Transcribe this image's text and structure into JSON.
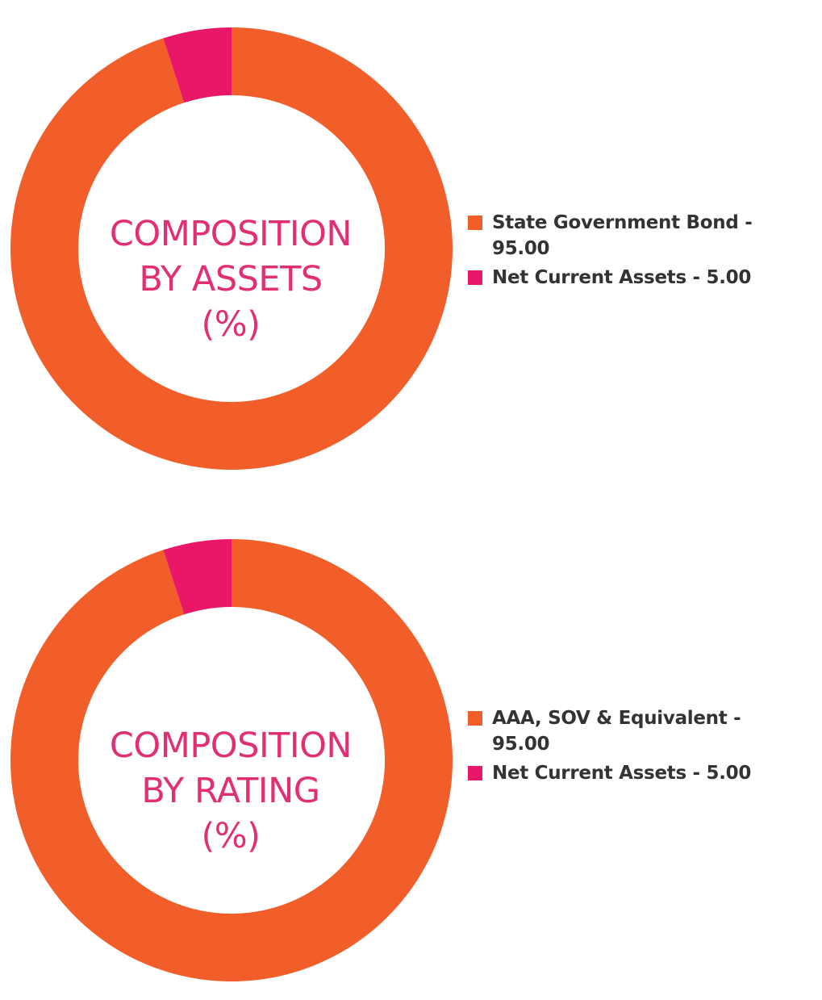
{
  "colors": {
    "primary": "#f15e2a",
    "secondary": "#ea1768",
    "title": "#e22f73",
    "legend_text": "#333333"
  },
  "chart_data": [
    {
      "type": "pie",
      "title_lines": [
        "COMPOSITION",
        "BY ASSETS",
        "(%)"
      ],
      "slices": [
        {
          "label": "State Government Bond - 95.00",
          "value": 95.0,
          "color": "#f15e2a"
        },
        {
          "label": "Net Current Assets - 5.00",
          "value": 5.0,
          "color": "#ea1768"
        }
      ],
      "legend_position": "right"
    },
    {
      "type": "pie",
      "title_lines": [
        "COMPOSITION",
        "BY RATING",
        "(%)"
      ],
      "slices": [
        {
          "label": "AAA, SOV & Equivalent - 95.00",
          "value": 95.0,
          "color": "#f15e2a"
        },
        {
          "label": "Net Current Assets - 5.00",
          "value": 5.0,
          "color": "#ea1768"
        }
      ],
      "legend_position": "right"
    }
  ]
}
